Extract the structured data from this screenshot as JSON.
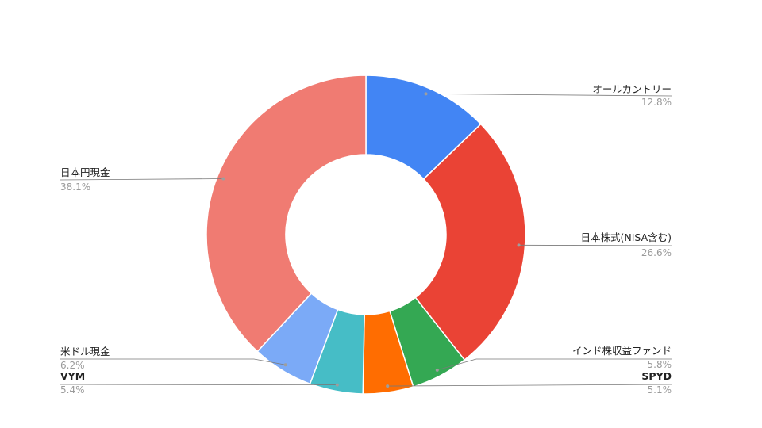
{
  "chart_data": {
    "type": "pie",
    "donut": true,
    "slices": [
      {
        "label": "オールカントリー",
        "value": 12.8,
        "pct_label": "12.8%",
        "color": "#4285f4"
      },
      {
        "label": "日本株式(NISA含む)",
        "value": 26.6,
        "pct_label": "26.6%",
        "color": "#ea4335"
      },
      {
        "label": "インド株収益ファンド",
        "value": 5.8,
        "pct_label": "5.8%",
        "color": "#34a853"
      },
      {
        "label": "SPYD",
        "value": 5.1,
        "pct_label": "5.1%",
        "color": "#ff6d01"
      },
      {
        "label": "VYM",
        "value": 5.4,
        "pct_label": "5.4%",
        "color": "#46bdc6"
      },
      {
        "label": "米ドル現金",
        "value": 6.2,
        "pct_label": "6.2%",
        "color": "#7baaf7"
      },
      {
        "label": "日本円現金",
        "value": 38.1,
        "pct_label": "38.1%",
        "color": "#f07b72"
      }
    ]
  }
}
